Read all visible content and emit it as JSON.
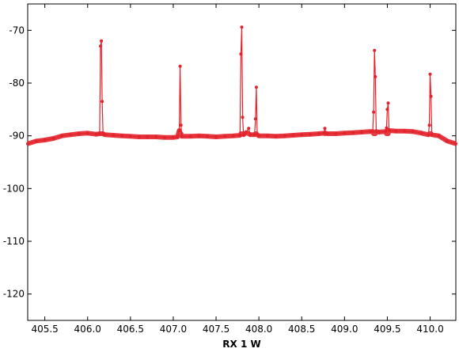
{
  "colors": {
    "series": "#e3232c",
    "axis": "#000000",
    "background": "#ffffff"
  },
  "chart_data": {
    "type": "line",
    "title": "",
    "xlabel": "RX 1 W",
    "ylabel": "",
    "xlim": [
      405.3,
      410.3
    ],
    "ylim": [
      -125,
      -65
    ],
    "x_ticks": [
      405.5,
      406.0,
      406.5,
      407.0,
      407.5,
      408.0,
      408.5,
      409.0,
      409.5,
      410.0
    ],
    "x_tick_labels": [
      "405.5",
      "406.0",
      "406.5",
      "407.0",
      "407.5",
      "408.0",
      "408.5",
      "409.0",
      "409.5",
      "410.0"
    ],
    "y_ticks": [
      -70,
      -80,
      -90,
      -100,
      -110,
      -120
    ],
    "y_tick_labels": [
      "-70",
      "-80",
      "-90",
      "-100",
      "-110",
      "-120"
    ],
    "grid": false,
    "legend": "none",
    "series": [
      {
        "x": [
          405.3,
          405.4,
          405.5,
          405.6,
          405.7,
          405.8,
          405.9,
          406.0,
          406.1,
          406.14,
          406.15,
          406.16,
          406.17,
          406.18,
          406.2,
          406.3,
          406.4,
          406.5,
          406.6,
          406.7,
          406.8,
          406.9,
          407.0,
          407.05,
          407.07,
          407.08,
          407.09,
          407.1,
          407.2,
          407.3,
          407.4,
          407.5,
          407.6,
          407.7,
          407.78,
          407.79,
          407.8,
          407.81,
          407.82,
          407.85,
          407.88,
          407.9,
          407.95,
          407.96,
          407.97,
          407.98,
          408.0,
          408.1,
          408.2,
          408.3,
          408.4,
          408.5,
          408.6,
          408.7,
          408.76,
          408.77,
          408.78,
          408.8,
          408.9,
          409.0,
          409.1,
          409.2,
          409.3,
          409.33,
          409.34,
          409.35,
          409.36,
          409.37,
          409.4,
          409.48,
          409.49,
          409.5,
          409.51,
          409.52,
          409.6,
          409.7,
          409.8,
          409.9,
          409.98,
          409.99,
          410.0,
          410.01,
          410.02,
          410.1,
          410.2,
          410.3
        ],
        "y": [
          -91.5,
          -91.0,
          -90.8,
          -90.5,
          -90.0,
          -89.8,
          -89.6,
          -89.5,
          -89.7,
          -89.6,
          -73.0,
          -72.0,
          -83.5,
          -89.6,
          -89.8,
          -89.9,
          -90.0,
          -90.1,
          -90.2,
          -90.2,
          -90.2,
          -90.3,
          -90.3,
          -90.2,
          -89.0,
          -76.8,
          -88.0,
          -90.1,
          -90.1,
          -90.0,
          -90.1,
          -90.2,
          -90.1,
          -90.0,
          -89.9,
          -74.5,
          -69.4,
          -86.5,
          -89.8,
          -89.4,
          -88.6,
          -89.8,
          -89.8,
          -86.8,
          -80.8,
          -89.8,
          -90.0,
          -90.0,
          -90.1,
          -90.0,
          -89.9,
          -89.8,
          -89.7,
          -89.6,
          -89.5,
          -88.6,
          -89.5,
          -89.6,
          -89.6,
          -89.5,
          -89.4,
          -89.3,
          -89.2,
          -89.2,
          -85.5,
          -73.8,
          -78.8,
          -89.2,
          -89.3,
          -89.2,
          -88.5,
          -85.0,
          -83.8,
          -89.0,
          -89.1,
          -89.1,
          -89.2,
          -89.5,
          -89.8,
          -88.0,
          -78.3,
          -82.5,
          -89.8,
          -90.0,
          -91.0,
          -91.5
        ]
      }
    ]
  }
}
